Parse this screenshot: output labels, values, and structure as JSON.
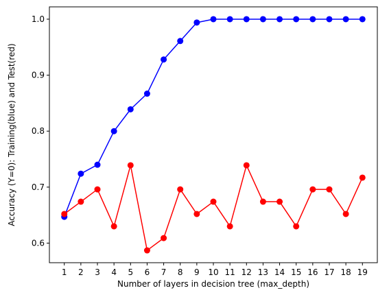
{
  "chart_data": {
    "type": "line",
    "title": "",
    "xlabel": "Number of layers in decision tree (max_depth)",
    "ylabel": "Accuracy (Y=0): Training(blue) and Test(red)",
    "x": [
      1,
      2,
      3,
      4,
      5,
      6,
      7,
      8,
      9,
      10,
      11,
      12,
      13,
      14,
      15,
      16,
      17,
      18,
      19
    ],
    "xlim": [
      0.1,
      19.9
    ],
    "ylim": [
      0.565,
      1.022
    ],
    "yticks": [
      0.6,
      0.7,
      0.8,
      0.9,
      1.0
    ],
    "ytick_labels": [
      "0.6",
      "0.7",
      "0.8",
      "0.9",
      "1.0"
    ],
    "grid": false,
    "legend": "none",
    "series": [
      {
        "color": "#0000ff",
        "marker": "circle",
        "values": [
          0.647,
          0.724,
          0.74,
          0.8,
          0.839,
          0.867,
          0.928,
          0.961,
          0.994,
          1.0,
          1.0,
          1.0,
          1.0,
          1.0,
          1.0,
          1.0,
          1.0,
          1.0,
          1.0
        ]
      },
      {
        "color": "#ff0000",
        "marker": "circle",
        "values": [
          0.652,
          0.674,
          0.696,
          0.63,
          0.739,
          0.587,
          0.609,
          0.696,
          0.652,
          0.674,
          0.63,
          0.739,
          0.674,
          0.674,
          0.63,
          0.696,
          0.696,
          0.652,
          0.717
        ]
      }
    ]
  }
}
